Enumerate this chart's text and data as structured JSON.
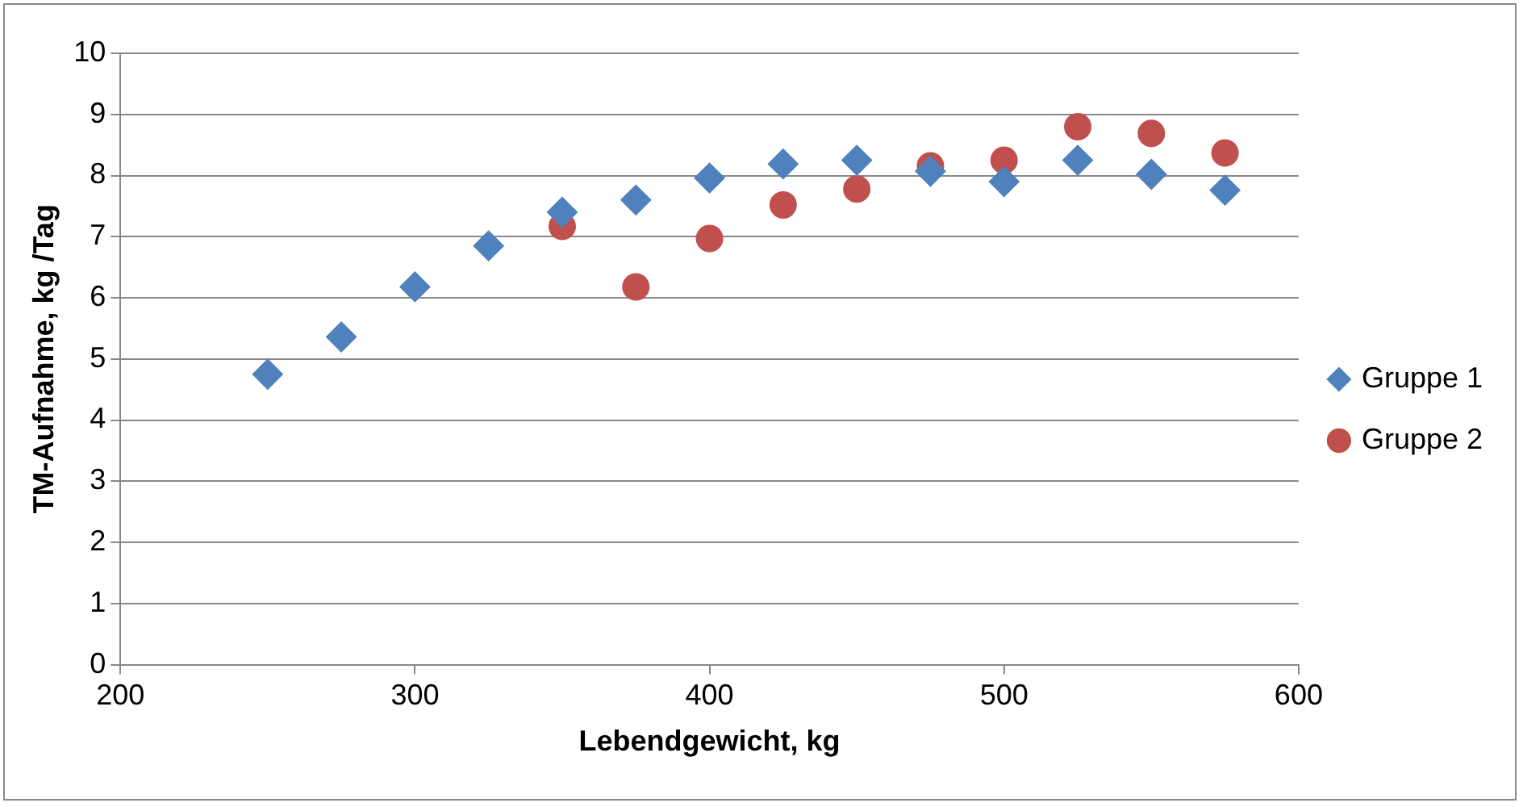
{
  "chart_data": {
    "type": "scatter",
    "xlabel": "Lebendgewicht, kg",
    "ylabel": "TM-Aufnahme, kg /Tag",
    "xlim": [
      200,
      600
    ],
    "xticks": [
      200,
      300,
      400,
      500,
      600
    ],
    "ylim": [
      0,
      10
    ],
    "yticks": [
      0,
      1,
      2,
      3,
      4,
      5,
      6,
      7,
      8,
      9,
      10
    ],
    "grid": "y",
    "legend": "right",
    "series": [
      {
        "name": "Gruppe 1",
        "color": "#4f81bd",
        "marker": "diamond",
        "x": [
          250,
          275,
          300,
          325,
          350,
          375,
          400,
          425,
          450,
          475,
          500,
          525,
          550,
          575
        ],
        "values": [
          4.75,
          5.36,
          6.18,
          6.85,
          7.4,
          7.6,
          7.96,
          8.19,
          8.25,
          8.07,
          7.9,
          8.25,
          8.02,
          7.76
        ]
      },
      {
        "name": "Gruppe 2",
        "color": "#c0504d",
        "marker": "circle",
        "x": [
          350,
          375,
          400,
          425,
          450,
          475,
          500,
          525,
          550,
          575
        ],
        "values": [
          7.17,
          6.18,
          6.97,
          7.52,
          7.78,
          8.16,
          8.25,
          8.8,
          8.69,
          8.37
        ]
      }
    ]
  }
}
